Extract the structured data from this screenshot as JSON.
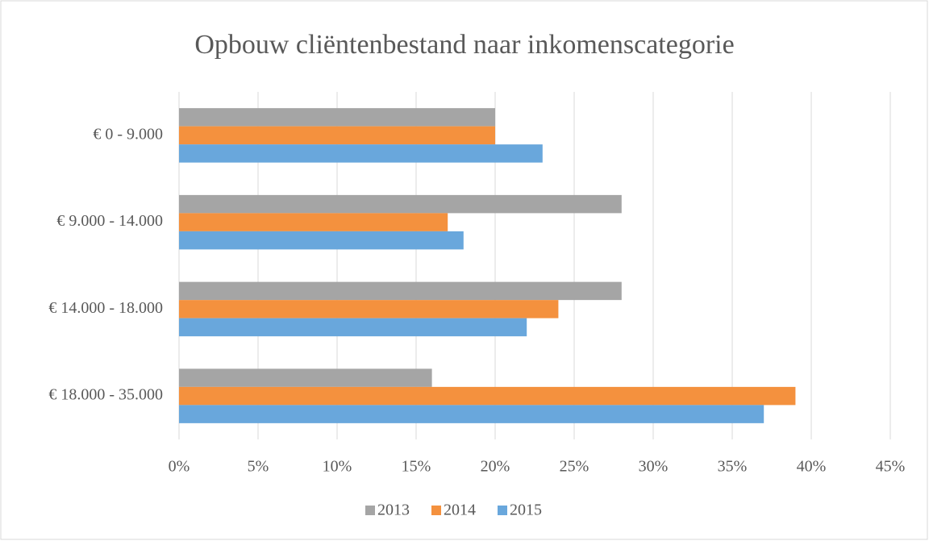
{
  "chart_data": {
    "type": "bar",
    "orientation": "horizontal",
    "title": "Opbouw cliëntenbestand naar inkomenscategorie",
    "categories": [
      "€ 0 - 9.000",
      "€ 9.000 - 14.000",
      "€ 14.000 - 18.000",
      "€ 18.000 - 35.000"
    ],
    "series": [
      {
        "name": "2013",
        "color": "#a5a5a5",
        "values": [
          20,
          28,
          28,
          16
        ]
      },
      {
        "name": "2014",
        "color": "#f4913e",
        "values": [
          20,
          17,
          24,
          39
        ]
      },
      {
        "name": "2015",
        "color": "#69a7dc",
        "values": [
          23,
          18,
          22,
          37
        ]
      }
    ],
    "xlim": [
      0,
      45
    ],
    "xticks": [
      {
        "value": 0,
        "label": "0%"
      },
      {
        "value": 5,
        "label": "5%"
      },
      {
        "value": 10,
        "label": "10%"
      },
      {
        "value": 15,
        "label": "15%"
      },
      {
        "value": 20,
        "label": "20%"
      },
      {
        "value": 25,
        "label": "25%"
      },
      {
        "value": 30,
        "label": "30%"
      },
      {
        "value": 35,
        "label": "35%"
      },
      {
        "value": 40,
        "label": "40%"
      },
      {
        "value": 45,
        "label": "45%"
      }
    ],
    "grid": true,
    "legend": "bottom"
  }
}
